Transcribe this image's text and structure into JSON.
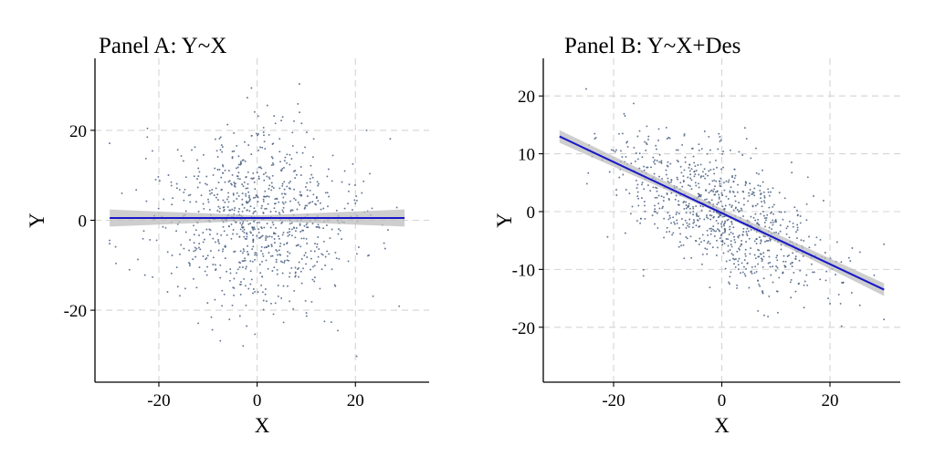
{
  "chart_data": [
    {
      "type": "scatter",
      "title": "Panel A: Y~X",
      "xlabel": "X",
      "ylabel": "Y",
      "xlim": [
        -33,
        35
      ],
      "ylim": [
        -36,
        36
      ],
      "xticks": [
        -20,
        0,
        20
      ],
      "yticks": [
        -20,
        0,
        20
      ],
      "x_tick_labels": [
        "-20",
        "0",
        "20"
      ],
      "y_tick_labels": [
        "-20",
        "0",
        "20"
      ],
      "grid": true,
      "legend": "none",
      "n_points": 900,
      "x_range": [
        -30,
        30
      ],
      "x_sd": 10,
      "y_sd": 10,
      "fit_line": {
        "x": [
          -30,
          30
        ],
        "y": [
          0.5,
          0.5
        ],
        "color": "#1717c8"
      },
      "confidence_band": {
        "x": [
          -30,
          0,
          30
        ],
        "lower": [
          -1.4,
          -0.1,
          -1.4
        ],
        "upper": [
          2.4,
          1.1,
          2.4
        ],
        "color": "#bdbdbd"
      },
      "point_color": "#4a5f80"
    },
    {
      "type": "scatter",
      "title": "Panel B: Y~X+Des",
      "xlabel": "X",
      "ylabel": "Y",
      "xlim": [
        -33,
        33
      ],
      "ylim": [
        -29.5,
        26.5
      ],
      "xticks": [
        -20,
        0,
        20
      ],
      "yticks": [
        -20,
        -10,
        0,
        10,
        20
      ],
      "x_tick_labels": [
        "-20",
        "0",
        "20"
      ],
      "y_tick_labels": [
        "-20",
        "-10",
        "0",
        "10",
        "20"
      ],
      "grid": true,
      "legend": "none",
      "n_points": 900,
      "x_range": [
        -30,
        30
      ],
      "x_sd": 10,
      "residual_sd": 5,
      "fit_line": {
        "x": [
          -30,
          30
        ],
        "y": [
          13,
          -13.5
        ],
        "color": "#1717c8"
      },
      "confidence_band": {
        "x": [
          -30,
          0,
          30
        ],
        "lower": [
          11.9,
          -0.5,
          -14.6
        ],
        "upper": [
          14.1,
          0.5,
          -12.4
        ],
        "color": "#bdbdbd"
      },
      "point_color": "#4a5f80"
    }
  ]
}
